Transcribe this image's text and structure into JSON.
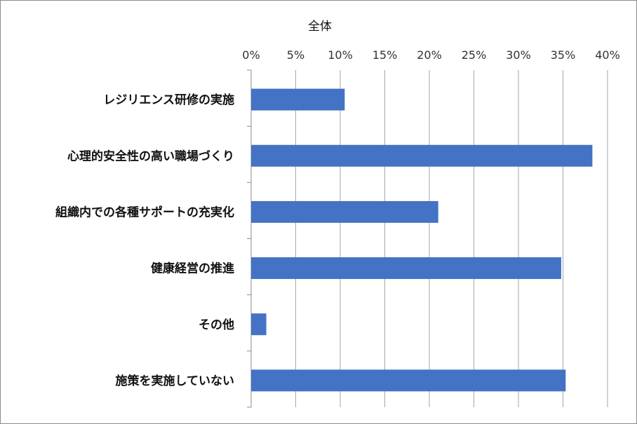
{
  "chart_data": {
    "type": "bar",
    "orientation": "horizontal",
    "title": "全体",
    "categories": [
      "レジリエンス研修の実施",
      "心理的安全性の高い職場づくり",
      "組織内での各種サポートの充実化",
      "健康経営の推進",
      "その他",
      "施策を実施していない"
    ],
    "values": [
      10.5,
      38.3,
      21.0,
      34.8,
      1.7,
      35.3
    ],
    "value_unit": "%",
    "x_ticks": [
      "0%",
      "5%",
      "10%",
      "15%",
      "20%",
      "25%",
      "30%",
      "35%",
      "40%"
    ],
    "xlim": [
      0,
      40
    ],
    "x_axis_position": "top",
    "grid": true,
    "legend": false,
    "colors": {
      "bar": "#4472c4",
      "grid": "#a6a6a6",
      "axis": "#8c8c8c"
    }
  }
}
